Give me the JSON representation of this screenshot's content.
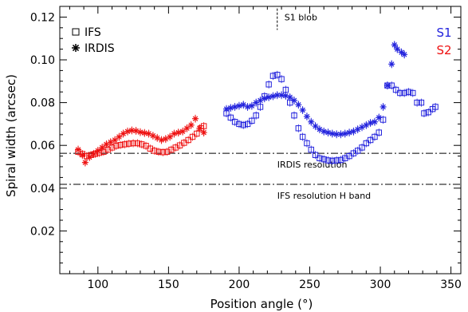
{
  "chart_data": {
    "type": "scatter",
    "title": "",
    "xlabel": "Position angle (°)",
    "ylabel": "Spiral width (arcsec)",
    "xlim": [
      73,
      357
    ],
    "ylim": [
      0.0,
      0.125
    ],
    "xticks": [
      100,
      150,
      200,
      250,
      300,
      350
    ],
    "yticks": [
      0.02,
      0.04,
      0.06,
      0.08,
      0.1,
      0.12
    ],
    "xtick_labels": [
      "100",
      "150",
      "200",
      "250",
      "300",
      "350"
    ],
    "ytick_labels": [
      "0.02",
      "0.04",
      "0.06",
      "0.08",
      "0.10",
      "0.12"
    ],
    "grid": false,
    "legend": {
      "placement": "top-left",
      "entries": [
        {
          "label": "IFS",
          "marker": "square"
        },
        {
          "label": "IRDIS",
          "marker": "asterisk"
        }
      ]
    },
    "series_tags": [
      {
        "label": "S1",
        "color": "#2222dd"
      },
      {
        "label": "S2",
        "color": "#ee1111"
      }
    ],
    "reference_lines": [
      {
        "label": "IRDIS resolution",
        "y": 0.0563,
        "style": "dash-dot"
      },
      {
        "label": "IFS resolution H band",
        "y": 0.0418,
        "style": "dash-dot"
      }
    ],
    "annotations": [
      {
        "label": "S1 blob",
        "x": 227,
        "y_range": [
          0.114,
          0.124
        ]
      }
    ],
    "series": [
      {
        "instrument": "IFS",
        "spiral": "S2",
        "color": "#ee1111",
        "marker": "square",
        "points": [
          [
            86,
            0.057
          ],
          [
            89,
            0.056
          ],
          [
            92,
            0.055
          ],
          [
            95,
            0.0555
          ],
          [
            98,
            0.056
          ],
          [
            101,
            0.0565
          ],
          [
            104,
            0.057
          ],
          [
            107,
            0.058
          ],
          [
            110,
            0.059
          ],
          [
            113,
            0.0598
          ],
          [
            116,
            0.0602
          ],
          [
            119,
            0.0605
          ],
          [
            122,
            0.0608
          ],
          [
            125,
            0.061
          ],
          [
            128,
            0.061
          ],
          [
            131,
            0.0605
          ],
          [
            134,
            0.0598
          ],
          [
            137,
            0.0585
          ],
          [
            140,
            0.0575
          ],
          [
            143,
            0.057
          ],
          [
            146,
            0.0568
          ],
          [
            149,
            0.057
          ],
          [
            152,
            0.058
          ],
          [
            155,
            0.059
          ],
          [
            158,
            0.06
          ],
          [
            161,
            0.0612
          ],
          [
            164,
            0.0625
          ],
          [
            167,
            0.064
          ],
          [
            170,
            0.0655
          ],
          [
            173,
            0.068
          ],
          [
            175,
            0.069
          ]
        ]
      },
      {
        "instrument": "IRDIS",
        "spiral": "S2",
        "color": "#ee1111",
        "marker": "asterisk",
        "points": [
          [
            86,
            0.058
          ],
          [
            89,
            0.0555
          ],
          [
            91,
            0.052
          ],
          [
            94,
            0.0545
          ],
          [
            97,
            0.056
          ],
          [
            100,
            0.0575
          ],
          [
            103,
            0.059
          ],
          [
            106,
            0.0605
          ],
          [
            109,
            0.0615
          ],
          [
            112,
            0.0625
          ],
          [
            115,
            0.064
          ],
          [
            118,
            0.0655
          ],
          [
            121,
            0.0665
          ],
          [
            124,
            0.067
          ],
          [
            127,
            0.0668
          ],
          [
            130,
            0.0662
          ],
          [
            133,
            0.0658
          ],
          [
            136,
            0.0655
          ],
          [
            139,
            0.0645
          ],
          [
            142,
            0.0635
          ],
          [
            145,
            0.0625
          ],
          [
            148,
            0.063
          ],
          [
            151,
            0.064
          ],
          [
            154,
            0.0655
          ],
          [
            157,
            0.066
          ],
          [
            160,
            0.0665
          ],
          [
            163,
            0.068
          ],
          [
            166,
            0.0695
          ],
          [
            169,
            0.0725
          ],
          [
            172,
            0.068
          ],
          [
            175,
            0.066
          ]
        ]
      },
      {
        "instrument": "IFS",
        "spiral": "S1",
        "color": "#2222dd",
        "marker": "square",
        "points": [
          [
            191,
            0.075
          ],
          [
            194,
            0.073
          ],
          [
            197,
            0.071
          ],
          [
            200,
            0.07
          ],
          [
            203,
            0.0695
          ],
          [
            206,
            0.07
          ],
          [
            209,
            0.0715
          ],
          [
            212,
            0.074
          ],
          [
            215,
            0.078
          ],
          [
            218,
            0.083
          ],
          [
            221,
            0.0885
          ],
          [
            224,
            0.0925
          ],
          [
            227,
            0.093
          ],
          [
            230,
            0.091
          ],
          [
            233,
            0.086
          ],
          [
            236,
            0.08
          ],
          [
            239,
            0.074
          ],
          [
            242,
            0.068
          ],
          [
            245,
            0.064
          ],
          [
            248,
            0.061
          ],
          [
            251,
            0.058
          ],
          [
            254,
            0.0555
          ],
          [
            257,
            0.054
          ],
          [
            260,
            0.0535
          ],
          [
            263,
            0.053
          ],
          [
            266,
            0.0528
          ],
          [
            269,
            0.053
          ],
          [
            272,
            0.0532
          ],
          [
            275,
            0.054
          ],
          [
            278,
            0.055
          ],
          [
            281,
            0.0563
          ],
          [
            284,
            0.0575
          ],
          [
            287,
            0.059
          ],
          [
            290,
            0.061
          ],
          [
            293,
            0.0625
          ],
          [
            296,
            0.064
          ],
          [
            299,
            0.066
          ],
          [
            302,
            0.072
          ],
          [
            305,
            0.088
          ],
          [
            308,
            0.088
          ],
          [
            311,
            0.086
          ],
          [
            314,
            0.0845
          ],
          [
            317,
            0.0845
          ],
          [
            320,
            0.085
          ],
          [
            323,
            0.0845
          ],
          [
            326,
            0.08
          ],
          [
            329,
            0.08
          ],
          [
            331,
            0.075
          ],
          [
            334,
            0.0755
          ],
          [
            337,
            0.077
          ],
          [
            339,
            0.078
          ]
        ]
      },
      {
        "instrument": "IRDIS",
        "spiral": "S1",
        "color": "#2222dd",
        "marker": "asterisk",
        "points": [
          [
            191,
            0.077
          ],
          [
            194,
            0.0775
          ],
          [
            197,
            0.078
          ],
          [
            200,
            0.0785
          ],
          [
            203,
            0.079
          ],
          [
            206,
            0.078
          ],
          [
            209,
            0.0785
          ],
          [
            212,
            0.08
          ],
          [
            215,
            0.081
          ],
          [
            218,
            0.082
          ],
          [
            221,
            0.0825
          ],
          [
            224,
            0.083
          ],
          [
            227,
            0.0835
          ],
          [
            230,
            0.0835
          ],
          [
            233,
            0.0832
          ],
          [
            236,
            0.0825
          ],
          [
            239,
            0.081
          ],
          [
            242,
            0.079
          ],
          [
            245,
            0.0765
          ],
          [
            248,
            0.0735
          ],
          [
            251,
            0.071
          ],
          [
            254,
            0.069
          ],
          [
            257,
            0.0675
          ],
          [
            260,
            0.0665
          ],
          [
            263,
            0.066
          ],
          [
            266,
            0.0655
          ],
          [
            269,
            0.0652
          ],
          [
            272,
            0.0652
          ],
          [
            275,
            0.0655
          ],
          [
            278,
            0.066
          ],
          [
            281,
            0.0665
          ],
          [
            284,
            0.0675
          ],
          [
            287,
            0.0685
          ],
          [
            290,
            0.0695
          ],
          [
            293,
            0.0705
          ],
          [
            296,
            0.071
          ],
          [
            299,
            0.073
          ],
          [
            302,
            0.078
          ],
          [
            305,
            0.088
          ],
          [
            308,
            0.098
          ],
          [
            310,
            0.107
          ],
          [
            312,
            0.105
          ],
          [
            315,
            0.1035
          ],
          [
            317,
            0.1025
          ]
        ]
      }
    ]
  }
}
